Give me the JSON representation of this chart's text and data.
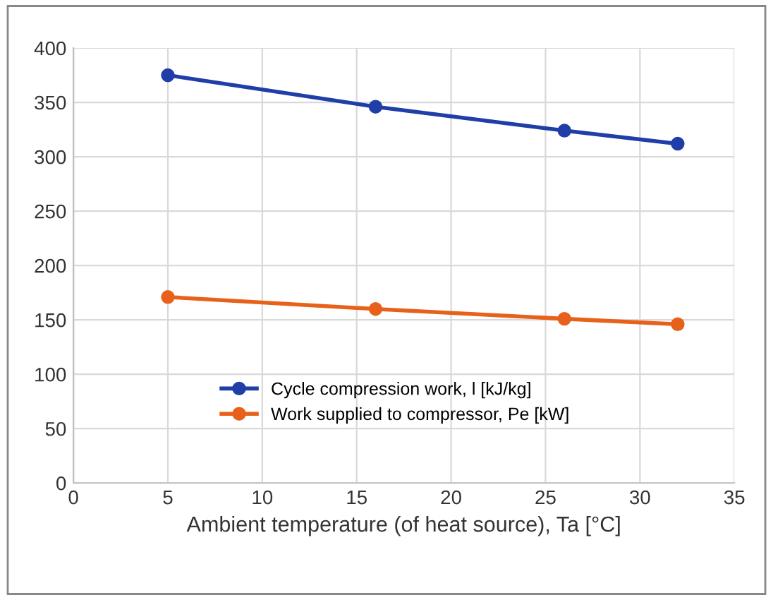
{
  "chart_data": {
    "type": "line",
    "xlabel": "Ambient temperature (of heat source), Ta [°C]",
    "x": [
      5,
      16,
      26,
      32
    ],
    "series": [
      {
        "name": "Cycle compression work, l [kJ/kg]",
        "color": "#1f3ea8",
        "values": [
          375,
          346,
          324,
          312
        ]
      },
      {
        "name": "Work supplied to compressor, Pe [kW]",
        "color": "#e8611a",
        "values": [
          171,
          160,
          151,
          146
        ]
      }
    ],
    "xlim": [
      0,
      35
    ],
    "xticks": [
      0,
      5,
      10,
      15,
      20,
      25,
      30,
      35
    ],
    "ylim": [
      0,
      400
    ],
    "yticks": [
      0,
      50,
      100,
      150,
      200,
      250,
      300,
      350,
      400
    ],
    "grid": true,
    "legend": "bottom left",
    "marker": "circle",
    "line_style": "solid"
  }
}
